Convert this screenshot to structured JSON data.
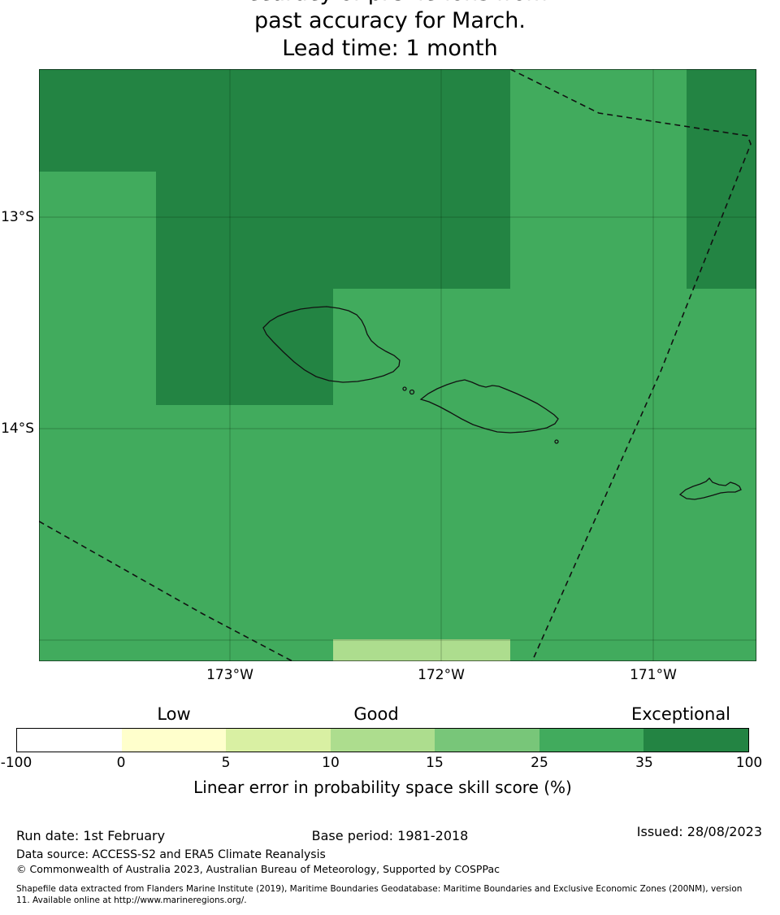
{
  "title": {
    "line1_clipped": "Accuracy of predictions from",
    "line2": "past accuracy for March.",
    "line3": "Lead time: 1 month"
  },
  "map": {
    "y_axis_labels": [
      "13°S",
      "14°S"
    ],
    "x_axis_labels": [
      "173°W",
      "172°W",
      "171°W"
    ]
  },
  "chart_data": {
    "type": "heatmap",
    "title": "past accuracy for March. Lead time: 1 month",
    "colorbar_label": "Linear error in probability space skill score (%)",
    "skill_category_labels": [
      "Low",
      "Good",
      "Exceptional"
    ],
    "colorbar_boundaries": [
      -100,
      0,
      5,
      10,
      15,
      25,
      35,
      100
    ],
    "value_bins": [
      {
        "range": "-100 to 0",
        "color": "#ffffff"
      },
      {
        "range": "0 to 5",
        "color": "#ffffcc"
      },
      {
        "range": "5 to 10",
        "color": "#d9f0a3"
      },
      {
        "range": "10 to 15",
        "color": "#addd8e"
      },
      {
        "range": "15 to 25",
        "color": "#78c679"
      },
      {
        "range": "25 to 35",
        "color": "#41ab5d"
      },
      {
        "range": "35 to 100",
        "color": "#238443"
      }
    ],
    "x_ticks": [
      "173°W",
      "172°W",
      "171°W"
    ],
    "y_ticks": [
      "13°S",
      "14°S"
    ],
    "map_regions": [
      {
        "skill_bin": "35 to 100",
        "area": "north-west corner block"
      },
      {
        "skill_bin": "35 to 100",
        "area": "large north-central block extending down west of the western island"
      },
      {
        "skill_bin": "35 to 100",
        "area": "north-east corner block"
      },
      {
        "skill_bin": "25 to 35",
        "area": "majority of map area"
      },
      {
        "skill_bin": "10 to 15",
        "area": "small patch at bottom centre"
      }
    ],
    "overlays": [
      "island coastline outlines",
      "dashed EEZ boundary lines",
      "latitude-longitude graticule"
    ]
  },
  "colorbar": {
    "ticks": [
      "-100",
      "0",
      "5",
      "10",
      "15",
      "25",
      "35",
      "100"
    ],
    "colors": [
      "#ffffff",
      "#ffffcc",
      "#d9f0a3",
      "#addd8e",
      "#78c679",
      "#41ab5d",
      "#238443"
    ],
    "category_labels": [
      "Low",
      "Good",
      "Exceptional"
    ],
    "label": "Linear error in probability space skill score (%)"
  },
  "footer": {
    "run_date": "Run date: 1st February",
    "base_period": "Base period: 1981-2018",
    "issued": "Issued: 28/08/2023",
    "data_source": "Data source: ACCESS-S2 and ERA5 Climate Reanalysis",
    "copyright": "© Commonwealth of Australia 2023, Australian Bureau of Meteorology, Supported by COSPPac",
    "shapefile_note": "Shapefile data extracted from Flanders Marine Institute (2019), Maritime Boundaries Geodatabase: Maritime Boundaries and Exclusive Economic Zones (200NM), version 11. Available online at http://www.marineregions.org/."
  }
}
